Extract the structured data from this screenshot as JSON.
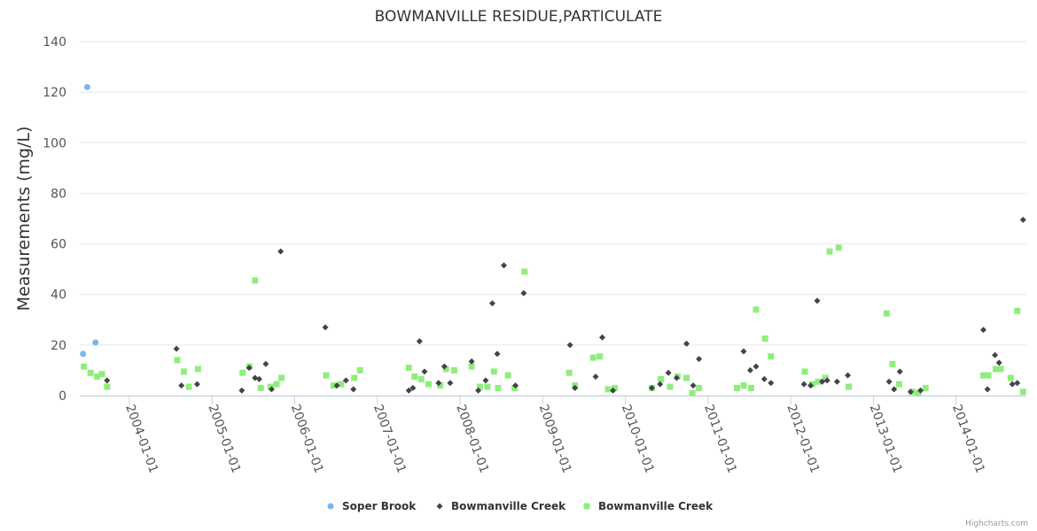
{
  "credits": "Highcharts.com",
  "chart_data": {
    "type": "scatter",
    "title": "BOWMANVILLE RESIDUE,PARTICULATE",
    "xlabel": "",
    "ylabel": "Measurements (mg/L)",
    "ylim": [
      0,
      140
    ],
    "yticks": [
      0,
      20,
      40,
      60,
      80,
      100,
      120,
      140
    ],
    "xlim": [
      2003.4,
      2014.85
    ],
    "xticks": [
      {
        "label": "2004-01-01",
        "x": 2004.0
      },
      {
        "label": "2005-01-01",
        "x": 2005.0
      },
      {
        "label": "2006-01-01",
        "x": 2006.0
      },
      {
        "label": "2007-01-01",
        "x": 2007.0
      },
      {
        "label": "2008-01-01",
        "x": 2008.0
      },
      {
        "label": "2009-01-01",
        "x": 2009.0
      },
      {
        "label": "2010-01-01",
        "x": 2010.0
      },
      {
        "label": "2011-01-01",
        "x": 2011.0
      },
      {
        "label": "2012-01-01",
        "x": 2012.0
      },
      {
        "label": "2013-01-01",
        "x": 2013.0
      },
      {
        "label": "2014-01-01",
        "x": 2014.0
      }
    ],
    "grid": true,
    "legend_position": "bottom-center",
    "series": [
      {
        "name": "Soper Brook",
        "marker": "circle",
        "color": "#7cb5ec",
        "points": [
          [
            2003.44,
            16.5
          ],
          [
            2003.49,
            122
          ],
          [
            2003.59,
            21
          ]
        ]
      },
      {
        "name": "Bowmanville Creek",
        "marker": "diamond",
        "color": "#434348",
        "points": [
          [
            2003.73,
            6
          ],
          [
            2004.57,
            18.5
          ],
          [
            2004.63,
            4
          ],
          [
            2004.82,
            4.5
          ],
          [
            2005.36,
            2
          ],
          [
            2005.45,
            11
          ],
          [
            2005.52,
            7
          ],
          [
            2005.57,
            6.5
          ],
          [
            2005.65,
            12.5
          ],
          [
            2005.72,
            2.5
          ],
          [
            2005.83,
            57
          ],
          [
            2006.37,
            27
          ],
          [
            2006.51,
            4
          ],
          [
            2006.62,
            6
          ],
          [
            2006.71,
            2.5
          ],
          [
            2007.38,
            2
          ],
          [
            2007.43,
            3
          ],
          [
            2007.51,
            21.5
          ],
          [
            2007.57,
            9.5
          ],
          [
            2007.74,
            5
          ],
          [
            2007.81,
            11.5
          ],
          [
            2007.88,
            5
          ],
          [
            2008.14,
            13.5
          ],
          [
            2008.22,
            2
          ],
          [
            2008.31,
            6
          ],
          [
            2008.39,
            36.5
          ],
          [
            2008.45,
            16.5
          ],
          [
            2008.53,
            51.5
          ],
          [
            2008.67,
            4
          ],
          [
            2008.77,
            40.5
          ],
          [
            2009.33,
            20
          ],
          [
            2009.39,
            3
          ],
          [
            2009.64,
            7.5
          ],
          [
            2009.72,
            23
          ],
          [
            2009.85,
            2
          ],
          [
            2010.32,
            3
          ],
          [
            2010.42,
            4.5
          ],
          [
            2010.52,
            9
          ],
          [
            2010.62,
            7
          ],
          [
            2010.74,
            20.5
          ],
          [
            2010.82,
            4
          ],
          [
            2010.89,
            14.5
          ],
          [
            2011.43,
            17.5
          ],
          [
            2011.51,
            10
          ],
          [
            2011.58,
            11.5
          ],
          [
            2011.68,
            6.5
          ],
          [
            2011.76,
            5
          ],
          [
            2012.16,
            4.5
          ],
          [
            2012.24,
            4
          ],
          [
            2012.32,
            37.5
          ],
          [
            2012.38,
            5.5
          ],
          [
            2012.44,
            6
          ],
          [
            2012.56,
            5.5
          ],
          [
            2012.69,
            8
          ],
          [
            2013.19,
            5.5
          ],
          [
            2013.25,
            2.5
          ],
          [
            2013.32,
            9.5
          ],
          [
            2013.45,
            1.5
          ],
          [
            2013.57,
            2
          ],
          [
            2014.33,
            26
          ],
          [
            2014.38,
            2.5
          ],
          [
            2014.47,
            16
          ],
          [
            2014.52,
            13
          ],
          [
            2014.68,
            4.5
          ],
          [
            2014.74,
            5
          ],
          [
            2014.81,
            69.5
          ]
        ]
      },
      {
        "name": "Bowmanville Creek",
        "marker": "square",
        "color": "#90ed7d",
        "points": [
          [
            2003.45,
            11.5
          ],
          [
            2003.53,
            9
          ],
          [
            2003.61,
            7.5
          ],
          [
            2003.67,
            8.5
          ],
          [
            2003.73,
            3.5
          ],
          [
            2004.58,
            14
          ],
          [
            2004.66,
            9.5
          ],
          [
            2004.72,
            3.5
          ],
          [
            2004.83,
            10.5
          ],
          [
            2005.37,
            9
          ],
          [
            2005.45,
            11.5
          ],
          [
            2005.52,
            45.5
          ],
          [
            2005.59,
            3
          ],
          [
            2005.71,
            3.5
          ],
          [
            2005.78,
            4.5
          ],
          [
            2005.84,
            7
          ],
          [
            2006.38,
            8
          ],
          [
            2006.47,
            4
          ],
          [
            2006.56,
            4.5
          ],
          [
            2006.72,
            7
          ],
          [
            2006.79,
            10
          ],
          [
            2007.38,
            11
          ],
          [
            2007.45,
            7.5
          ],
          [
            2007.53,
            6.5
          ],
          [
            2007.62,
            4.5
          ],
          [
            2007.76,
            4
          ],
          [
            2007.83,
            10.5
          ],
          [
            2007.93,
            10
          ],
          [
            2008.14,
            11.5
          ],
          [
            2008.24,
            3.5
          ],
          [
            2008.33,
            3.5
          ],
          [
            2008.41,
            9.5
          ],
          [
            2008.46,
            3
          ],
          [
            2008.58,
            8
          ],
          [
            2008.66,
            3
          ],
          [
            2008.78,
            49
          ],
          [
            2009.32,
            9
          ],
          [
            2009.39,
            4
          ],
          [
            2009.61,
            15
          ],
          [
            2009.69,
            15.5
          ],
          [
            2009.79,
            2.5
          ],
          [
            2009.87,
            3
          ],
          [
            2010.32,
            3
          ],
          [
            2010.43,
            6.5
          ],
          [
            2010.54,
            3.5
          ],
          [
            2010.63,
            7.5
          ],
          [
            2010.74,
            7
          ],
          [
            2010.81,
            1
          ],
          [
            2010.89,
            3
          ],
          [
            2011.35,
            3
          ],
          [
            2011.43,
            4
          ],
          [
            2011.52,
            3
          ],
          [
            2011.58,
            34
          ],
          [
            2011.69,
            22.5
          ],
          [
            2011.76,
            15.5
          ],
          [
            2012.17,
            9.5
          ],
          [
            2012.26,
            4.5
          ],
          [
            2012.33,
            5.5
          ],
          [
            2012.42,
            7
          ],
          [
            2012.47,
            57
          ],
          [
            2012.58,
            58.5
          ],
          [
            2012.7,
            3.5
          ],
          [
            2013.16,
            32.5
          ],
          [
            2013.23,
            12.5
          ],
          [
            2013.31,
            4.5
          ],
          [
            2013.47,
            1.5
          ],
          [
            2013.54,
            1
          ],
          [
            2013.63,
            3
          ],
          [
            2014.33,
            8
          ],
          [
            2014.39,
            8
          ],
          [
            2014.48,
            10.5
          ],
          [
            2014.54,
            10.5
          ],
          [
            2014.66,
            7
          ],
          [
            2014.74,
            33.5
          ],
          [
            2014.81,
            1.5
          ]
        ]
      }
    ]
  }
}
